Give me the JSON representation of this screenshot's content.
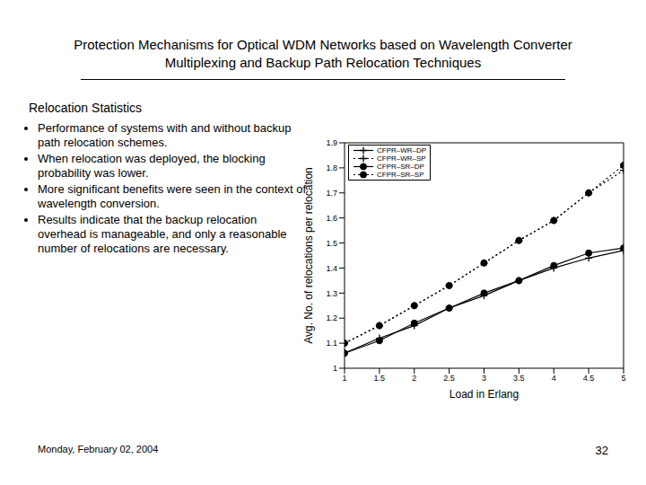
{
  "slide": {
    "title": "Protection Mechanisms for Optical WDM Networks based on Wavelength Converter Multiplexing and Backup Path Relocation Techniques",
    "heading": "Relocation Statistics",
    "bullets": [
      "Performance of systems with and without backup path relocation schemes.",
      "When relocation was deployed, the blocking probability was lower.",
      "More significant benefits were seen in the context of wavelength conversion.",
      "Results indicate that the backup relocation overhead is manageable, and only a reasonable number of relocations are necessary."
    ],
    "date": "Monday, February 02, 2004",
    "page": "32"
  },
  "chart_data": {
    "type": "line",
    "x_label": "Load in Erlang",
    "y_label": "Avg. No. of relocations per relocation",
    "x": [
      1,
      1.5,
      2,
      2.5,
      3,
      3.5,
      4,
      4.5,
      5
    ],
    "xlim": [
      1,
      5
    ],
    "xticks": [
      1,
      1.5,
      2,
      2.5,
      3,
      3.5,
      4,
      4.5,
      5
    ],
    "ylim": [
      1,
      1.9
    ],
    "yticks": [
      1,
      1.1,
      1.2,
      1.3,
      1.4,
      1.5,
      1.6,
      1.7,
      1.8,
      1.9
    ],
    "grid": false,
    "legend": "upper left",
    "series": [
      {
        "name": "CFPR–WR–DP",
        "color": "#000000",
        "marker": "plus",
        "line_style": "solid",
        "values": [
          1.06,
          1.12,
          1.17,
          1.24,
          1.29,
          1.35,
          1.4,
          1.44,
          1.47
        ]
      },
      {
        "name": "CFPR–WR–SP",
        "color": "#000000",
        "marker": "plus",
        "line_style": "dotted",
        "values": [
          1.1,
          1.17,
          1.25,
          1.33,
          1.42,
          1.51,
          1.59,
          1.7,
          1.79
        ]
      },
      {
        "name": "CFPR–SR–DP",
        "color": "#000000",
        "marker": "circle",
        "line_style": "solid",
        "values": [
          1.06,
          1.11,
          1.18,
          1.24,
          1.3,
          1.35,
          1.41,
          1.46,
          1.48
        ]
      },
      {
        "name": "CFPR–SR–SP",
        "color": "#000000",
        "marker": "circle",
        "line_style": "dotted",
        "values": [
          1.1,
          1.17,
          1.25,
          1.33,
          1.42,
          1.51,
          1.59,
          1.7,
          1.81
        ]
      }
    ]
  }
}
